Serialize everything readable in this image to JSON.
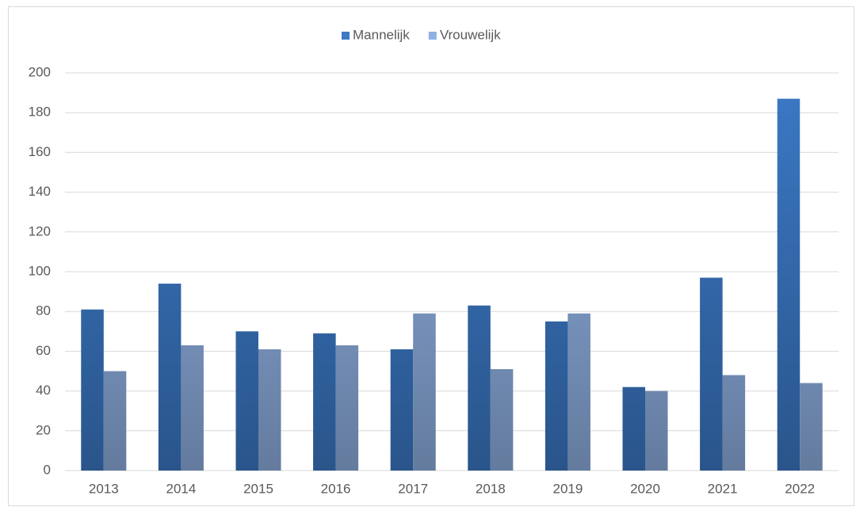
{
  "chart_data": {
    "type": "bar",
    "categories": [
      "2013",
      "2014",
      "2015",
      "2016",
      "2017",
      "2018",
      "2019",
      "2020",
      "2021",
      "2022"
    ],
    "series": [
      {
        "name": "Mannelijk",
        "color": "#3b79c6",
        "values": [
          81,
          94,
          70,
          69,
          61,
          83,
          75,
          42,
          97,
          187
        ]
      },
      {
        "name": "Vrouwelijk",
        "color": "#8fb0e2",
        "values": [
          50,
          63,
          61,
          63,
          79,
          51,
          79,
          40,
          48,
          44
        ]
      }
    ],
    "ylim": [
      0,
      200
    ],
    "yticks": [
      0,
      20,
      40,
      60,
      80,
      100,
      120,
      140,
      160,
      180,
      200
    ],
    "grid": true,
    "legend": "top"
  }
}
